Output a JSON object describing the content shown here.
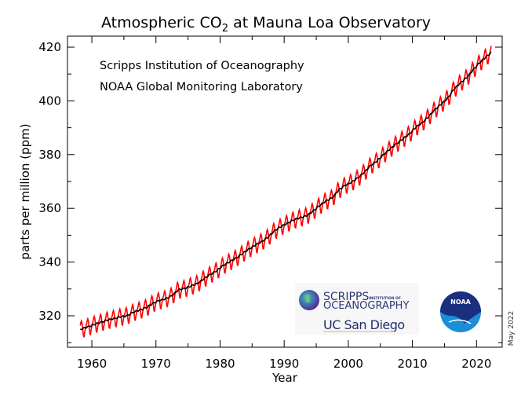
{
  "chart_data": {
    "type": "line",
    "title": "Atmospheric CO",
    "title_subscript": "2",
    "title_suffix": " at Mauna Loa Observatory",
    "annotations": [
      "Scripps Institution of Oceanography",
      "NOAA Global Monitoring Laboratory"
    ],
    "date_note": "May 2022",
    "xlabel": "Year",
    "ylabel": "parts per million (ppm)",
    "xlim": [
      1956.2,
      2024.0
    ],
    "ylim": [
      308.3,
      424.1
    ],
    "xticks": [
      1960,
      1970,
      1980,
      1990,
      2000,
      2010,
      2020
    ],
    "yticks": [
      320,
      340,
      360,
      380,
      400,
      420
    ],
    "grid": false,
    "colors": {
      "monthly": "#ff0000",
      "trend": "#000000"
    },
    "series": [
      {
        "key": "trend",
        "years": [
          1958.5,
          1959.5,
          1960.5,
          1961.5,
          1962.5,
          1963.5,
          1964.5,
          1965.5,
          1966.5,
          1967.5,
          1968.5,
          1969.5,
          1970.5,
          1971.5,
          1972.5,
          1973.5,
          1974.5,
          1975.5,
          1976.5,
          1977.5,
          1978.5,
          1979.5,
          1980.5,
          1981.5,
          1982.5,
          1983.5,
          1984.5,
          1985.5,
          1986.5,
          1987.5,
          1988.5,
          1989.5,
          1990.5,
          1991.5,
          1992.5,
          1993.5,
          1994.5,
          1995.5,
          1996.5,
          1997.5,
          1998.5,
          1999.5,
          2000.5,
          2001.5,
          2002.5,
          2003.5,
          2004.5,
          2005.5,
          2006.5,
          2007.5,
          2008.5,
          2009.5,
          2010.5,
          2011.5,
          2012.5,
          2013.5,
          2014.5,
          2015.5,
          2016.5,
          2017.5,
          2018.5,
          2019.5,
          2020.5,
          2021.5,
          2022.3
        ],
        "values": [
          315.2,
          315.98,
          316.91,
          317.64,
          318.45,
          318.99,
          319.62,
          320.04,
          321.37,
          322.18,
          323.05,
          324.62,
          325.68,
          326.32,
          327.46,
          329.68,
          330.19,
          331.13,
          332.03,
          333.84,
          335.41,
          336.84,
          338.76,
          340.12,
          341.48,
          343.15,
          344.87,
          346.35,
          347.61,
          349.31,
          351.69,
          353.2,
          354.45,
          355.7,
          356.54,
          357.21,
          358.96,
          360.97,
          362.74,
          363.88,
          366.84,
          368.54,
          369.71,
          371.32,
          373.45,
          375.98,
          377.7,
          379.98,
          382.09,
          384.02,
          385.83,
          387.64,
          390.1,
          391.85,
          394.06,
          396.74,
          398.81,
          401.01,
          404.41,
          406.76,
          408.72,
          411.66,
          414.24,
          416.45,
          418.0
        ]
      },
      {
        "key": "monthly",
        "start": 1958.2,
        "end": 2022.33,
        "seasonal_cycle_ppm": [
          0.0,
          0.7,
          1.4,
          2.5,
          3.0,
          2.3,
          0.8,
          -1.2,
          -3.0,
          -3.2,
          -1.9,
          -0.8
        ]
      }
    ]
  },
  "logos": {
    "scripps_line1": "SCRIPPS",
    "scripps_line1_small": "INSTITUTION OF",
    "scripps_line2": "OCEANOGRAPHY",
    "ucsd": "UC San Diego",
    "noaa": "NOAA"
  }
}
